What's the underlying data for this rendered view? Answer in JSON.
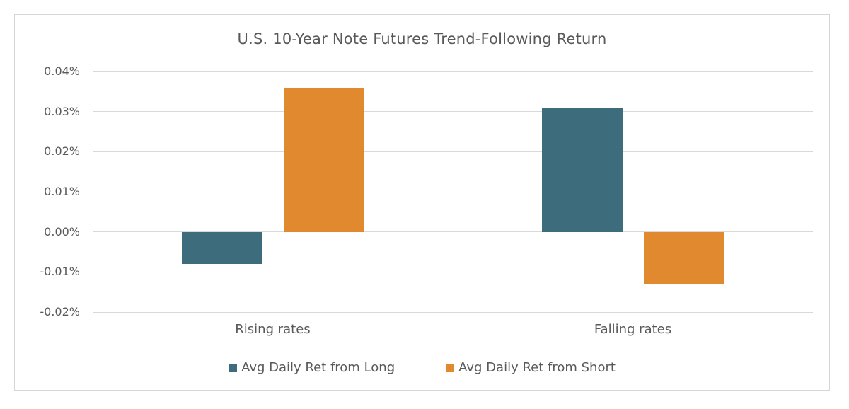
{
  "chart_data": {
    "type": "bar",
    "title": "U.S. 10-Year Note Futures Trend-Following Return",
    "categories": [
      "Rising rates",
      "Falling rates"
    ],
    "series": [
      {
        "name": "Avg Daily Ret from Long",
        "slug": "long",
        "color": "#3d6c7c",
        "values": [
          -0.008,
          0.031
        ]
      },
      {
        "name": "Avg Daily Ret from Short",
        "slug": "short",
        "color": "#e1892e",
        "values": [
          0.036,
          -0.013
        ]
      }
    ],
    "y_axis": {
      "unit": "%",
      "min": -0.02,
      "max": 0.04,
      "step": 0.01,
      "tick_labels": [
        "0.04%",
        "0.03%",
        "0.02%",
        "0.01%",
        "0.00%",
        "-0.01%",
        "-0.02%"
      ]
    },
    "xlabel": "",
    "ylabel": "",
    "grid": true,
    "legend_position": "bottom",
    "colors": {
      "text": "#595959",
      "gridline": "#d9d9d9",
      "frame_border": "#d6d6d6",
      "background": "#ffffff"
    }
  }
}
